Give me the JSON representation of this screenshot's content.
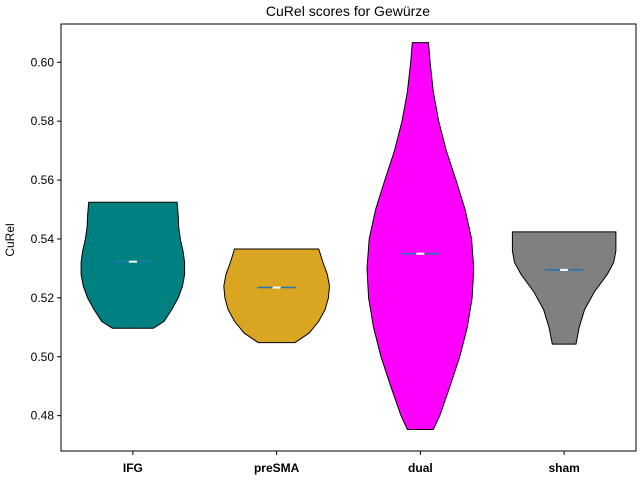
{
  "chart_data": {
    "type": "violin",
    "title": "CuRel scores for Gewürze",
    "xlabel": "",
    "ylabel": "CuRel",
    "ylim": [
      0.468,
      0.613
    ],
    "yticks": [
      "0.48",
      "0.50",
      "0.52",
      "0.54",
      "0.56",
      "0.58",
      "0.60"
    ],
    "categories": [
      "IFG",
      "preSMA",
      "dual",
      "sham"
    ],
    "series": [
      {
        "category": "IFG",
        "color": "#008080",
        "min": 0.5097,
        "max": 0.5525,
        "median": 0.5323,
        "mean": 0.5323,
        "profile": [
          [
            0.5097,
            0.38
          ],
          [
            0.512,
            0.58
          ],
          [
            0.516,
            0.72
          ],
          [
            0.52,
            0.84
          ],
          [
            0.524,
            0.92
          ],
          [
            0.528,
            0.96
          ],
          [
            0.532,
            0.96
          ],
          [
            0.536,
            0.93
          ],
          [
            0.54,
            0.88
          ],
          [
            0.544,
            0.85
          ],
          [
            0.548,
            0.84
          ],
          [
            0.5525,
            0.82
          ]
        ]
      },
      {
        "category": "preSMA",
        "color": "#daa520",
        "min": 0.5048,
        "max": 0.5366,
        "median": 0.5235,
        "mean": 0.5235,
        "profile": [
          [
            0.5048,
            0.34
          ],
          [
            0.508,
            0.6
          ],
          [
            0.512,
            0.78
          ],
          [
            0.516,
            0.9
          ],
          [
            0.52,
            0.96
          ],
          [
            0.524,
            0.98
          ],
          [
            0.528,
            0.94
          ],
          [
            0.532,
            0.86
          ],
          [
            0.5366,
            0.78
          ]
        ]
      },
      {
        "category": "dual",
        "color": "#ff00ff",
        "min": 0.4753,
        "max": 0.6067,
        "median": 0.535,
        "mean": 0.535,
        "profile": [
          [
            0.4753,
            0.24
          ],
          [
            0.48,
            0.36
          ],
          [
            0.49,
            0.55
          ],
          [
            0.5,
            0.73
          ],
          [
            0.51,
            0.87
          ],
          [
            0.52,
            0.96
          ],
          [
            0.53,
            0.99
          ],
          [
            0.54,
            0.95
          ],
          [
            0.55,
            0.83
          ],
          [
            0.56,
            0.66
          ],
          [
            0.57,
            0.48
          ],
          [
            0.58,
            0.34
          ],
          [
            0.59,
            0.24
          ],
          [
            0.6,
            0.18
          ],
          [
            0.6067,
            0.15
          ]
        ]
      },
      {
        "category": "sham",
        "color": "#808080",
        "min": 0.5043,
        "max": 0.5424,
        "median": 0.5295,
        "mean": 0.5295,
        "profile": [
          [
            0.5043,
            0.22
          ],
          [
            0.51,
            0.28
          ],
          [
            0.516,
            0.38
          ],
          [
            0.522,
            0.56
          ],
          [
            0.528,
            0.8
          ],
          [
            0.532,
            0.92
          ],
          [
            0.536,
            0.96
          ],
          [
            0.5424,
            0.96
          ]
        ]
      }
    ],
    "marker_colors": {
      "median": "#ffffff",
      "mean": "#1f77b4"
    },
    "grid": false,
    "legend": "none"
  }
}
